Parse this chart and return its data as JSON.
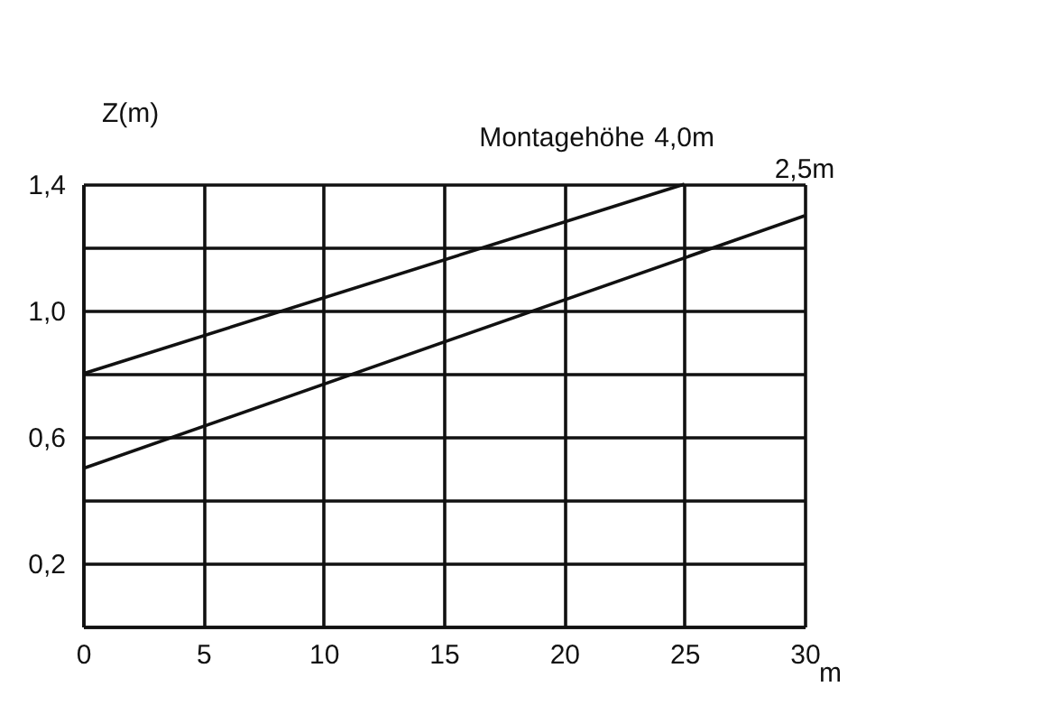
{
  "chart_data": {
    "type": "line",
    "xlabel": "m",
    "ylabel": "Z(m)",
    "annotations": [
      "Montagehöhe"
    ],
    "series": [
      {
        "name": "4,0m",
        "color": "#111111",
        "x": [
          0,
          25
        ],
        "values": [
          0.8,
          1.4
        ]
      },
      {
        "name": "2,5m",
        "color": "#111111",
        "x": [
          0,
          30
        ],
        "values": [
          0.5,
          1.3
        ]
      }
    ],
    "xlim": [
      0,
      30
    ],
    "xticks": [
      0,
      5,
      10,
      15,
      20,
      25,
      30
    ],
    "ylim": [
      0,
      1.4
    ],
    "yticks": [
      {
        "value": 0,
        "label": null
      },
      {
        "value": 0.2,
        "label": "0,2"
      },
      {
        "value": 0.4,
        "label": null
      },
      {
        "value": 0.6,
        "label": "0,6"
      },
      {
        "value": 0.8,
        "label": null
      },
      {
        "value": 1.0,
        "label": "1,0"
      },
      {
        "value": 1.2,
        "label": null
      },
      {
        "value": 1.4,
        "label": "1,4"
      }
    ],
    "grid": true,
    "legend": false,
    "marker": "none",
    "line_style": "solid"
  }
}
